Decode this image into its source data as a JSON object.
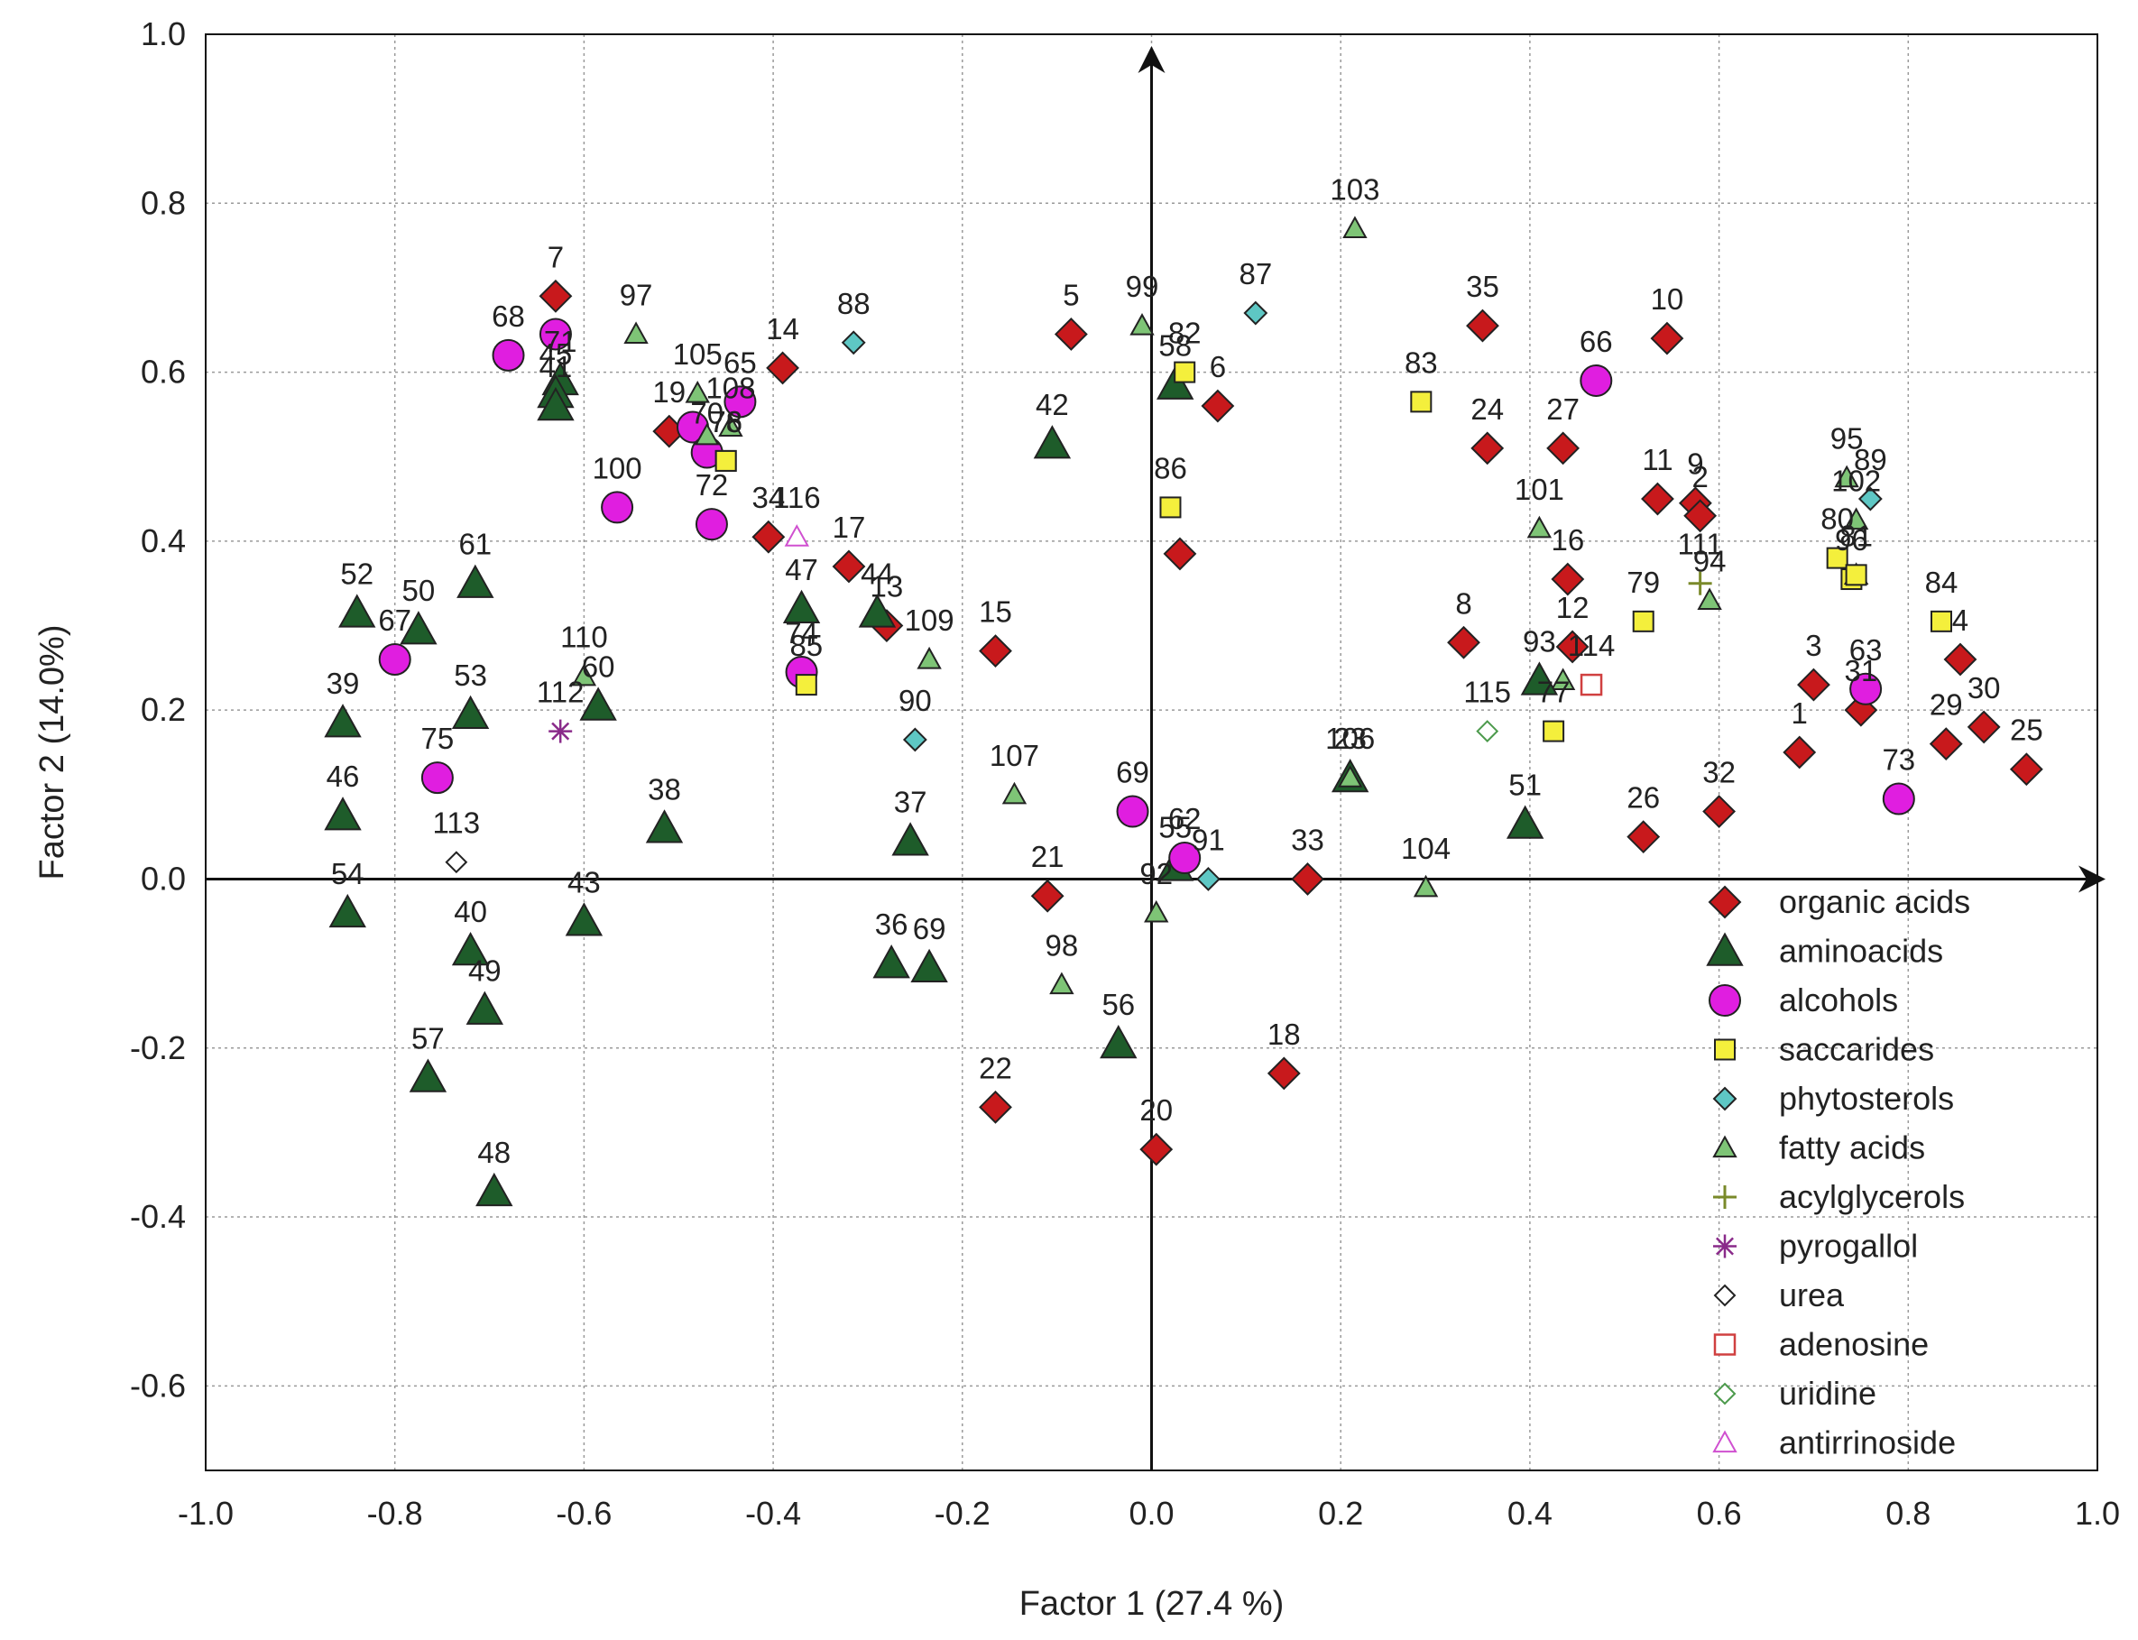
{
  "chart_data": {
    "type": "scatter",
    "xlabel": "Factor 1 (27.4 %)",
    "ylabel": "Factor 2 (14.0%)",
    "xlim": [
      -1.0,
      1.0
    ],
    "ylim": [
      -0.7,
      1.0
    ],
    "xticks": [
      "-1.0",
      "-0.8",
      "-0.6",
      "-0.4",
      "-0.2",
      "0.0",
      "0.2",
      "0.4",
      "0.6",
      "0.8",
      "1.0"
    ],
    "yticks": [
      "1.0",
      "0.8",
      "0.6",
      "0.4",
      "0.2",
      "0.0",
      "-0.2",
      "-0.4",
      "-0.6"
    ],
    "grid": true,
    "legend_position": "bottom-right",
    "categories": [
      {
        "name": "organic acids",
        "marker": "diamond",
        "color": "#c8191c"
      },
      {
        "name": "aminoacids",
        "marker": "triangle",
        "color": "#1e5c2a"
      },
      {
        "name": "alcohols",
        "marker": "circle",
        "color": "#e01ee0"
      },
      {
        "name": "saccarides",
        "marker": "square",
        "color": "#f4ef3c"
      },
      {
        "name": "phytosterols",
        "marker": "diamond-small",
        "color": "#5ec7c4"
      },
      {
        "name": "fatty acids",
        "marker": "triangle-small",
        "color": "#7ec476"
      },
      {
        "name": "acylglycerols",
        "marker": "plus",
        "color": "#7a8a2a"
      },
      {
        "name": "pyrogallol",
        "marker": "asterisk",
        "color": "#8a2a8a"
      },
      {
        "name": "urea",
        "marker": "diamond-open",
        "color": "#222222"
      },
      {
        "name": "adenosine",
        "marker": "square-open",
        "color": "#d04040"
      },
      {
        "name": "uridine",
        "marker": "diamond-open",
        "color": "#4c9a4c"
      },
      {
        "name": "antirrinoside",
        "marker": "triangle-open",
        "color": "#d050d0"
      }
    ],
    "points": [
      {
        "label": "7",
        "x": -0.63,
        "y": 0.69,
        "cat": 0
      },
      {
        "label": "14",
        "x": -0.39,
        "y": 0.605,
        "cat": 0
      },
      {
        "label": "19",
        "x": -0.51,
        "y": 0.53,
        "cat": 0
      },
      {
        "label": "34",
        "x": -0.405,
        "y": 0.405,
        "cat": 0
      },
      {
        "label": "17",
        "x": -0.32,
        "y": 0.37,
        "cat": 0
      },
      {
        "label": "13",
        "x": -0.28,
        "y": 0.3,
        "cat": 0
      },
      {
        "label": "15",
        "x": -0.165,
        "y": 0.27,
        "cat": 0
      },
      {
        "label": "5",
        "x": -0.085,
        "y": 0.645,
        "cat": 0
      },
      {
        "label": "6",
        "x": 0.07,
        "y": 0.56,
        "cat": 0
      },
      {
        "label": "",
        "x": 0.03,
        "y": 0.385,
        "cat": 0
      },
      {
        "label": "21",
        "x": -0.11,
        "y": -0.02,
        "cat": 0
      },
      {
        "label": "22",
        "x": -0.165,
        "y": -0.27,
        "cat": 0
      },
      {
        "label": "20",
        "x": 0.005,
        "y": -0.32,
        "cat": 0
      },
      {
        "label": "18",
        "x": 0.14,
        "y": -0.23,
        "cat": 0
      },
      {
        "label": "33",
        "x": 0.165,
        "y": 0.0,
        "cat": 0
      },
      {
        "label": "35",
        "x": 0.35,
        "y": 0.655,
        "cat": 0
      },
      {
        "label": "24",
        "x": 0.355,
        "y": 0.51,
        "cat": 0
      },
      {
        "label": "27",
        "x": 0.435,
        "y": 0.51,
        "cat": 0
      },
      {
        "label": "16",
        "x": 0.44,
        "y": 0.355,
        "cat": 0
      },
      {
        "label": "12",
        "x": 0.445,
        "y": 0.275,
        "cat": 0
      },
      {
        "label": "8",
        "x": 0.33,
        "y": 0.28,
        "cat": 0
      },
      {
        "label": "10",
        "x": 0.545,
        "y": 0.64,
        "cat": 0
      },
      {
        "label": "11",
        "x": 0.535,
        "y": 0.45,
        "cat": 0
      },
      {
        "label": "9",
        "x": 0.575,
        "y": 0.445,
        "cat": 0
      },
      {
        "label": "2",
        "x": 0.58,
        "y": 0.43,
        "cat": 0
      },
      {
        "label": "26",
        "x": 0.52,
        "y": 0.05,
        "cat": 0
      },
      {
        "label": "32",
        "x": 0.6,
        "y": 0.08,
        "cat": 0
      },
      {
        "label": "1",
        "x": 0.685,
        "y": 0.15,
        "cat": 0
      },
      {
        "label": "3",
        "x": 0.7,
        "y": 0.23,
        "cat": 0
      },
      {
        "label": "31",
        "x": 0.75,
        "y": 0.2,
        "cat": 0
      },
      {
        "label": "29",
        "x": 0.84,
        "y": 0.16,
        "cat": 0
      },
      {
        "label": "4",
        "x": 0.855,
        "y": 0.26,
        "cat": 0
      },
      {
        "label": "30",
        "x": 0.88,
        "y": 0.18,
        "cat": 0
      },
      {
        "label": "25",
        "x": 0.925,
        "y": 0.13,
        "cat": 0
      },
      {
        "label": "71",
        "x": -0.625,
        "y": 0.59,
        "cat": 1
      },
      {
        "label": "45",
        "x": -0.63,
        "y": 0.575,
        "cat": 1
      },
      {
        "label": "41",
        "x": -0.63,
        "y": 0.56,
        "cat": 1
      },
      {
        "label": "61",
        "x": -0.715,
        "y": 0.35,
        "cat": 1
      },
      {
        "label": "52",
        "x": -0.84,
        "y": 0.315,
        "cat": 1
      },
      {
        "label": "50",
        "x": -0.775,
        "y": 0.295,
        "cat": 1
      },
      {
        "label": "53",
        "x": -0.72,
        "y": 0.195,
        "cat": 1
      },
      {
        "label": "39",
        "x": -0.855,
        "y": 0.185,
        "cat": 1
      },
      {
        "label": "46",
        "x": -0.855,
        "y": 0.075,
        "cat": 1
      },
      {
        "label": "54",
        "x": -0.85,
        "y": -0.04,
        "cat": 1
      },
      {
        "label": "60",
        "x": -0.585,
        "y": 0.205,
        "cat": 1
      },
      {
        "label": "38",
        "x": -0.515,
        "y": 0.06,
        "cat": 1
      },
      {
        "label": "43",
        "x": -0.6,
        "y": -0.05,
        "cat": 1
      },
      {
        "label": "40",
        "x": -0.72,
        "y": -0.085,
        "cat": 1
      },
      {
        "label": "49",
        "x": -0.705,
        "y": -0.155,
        "cat": 1
      },
      {
        "label": "57",
        "x": -0.765,
        "y": -0.235,
        "cat": 1
      },
      {
        "label": "48",
        "x": -0.695,
        "y": -0.37,
        "cat": 1
      },
      {
        "label": "47",
        "x": -0.37,
        "y": 0.32,
        "cat": 1
      },
      {
        "label": "44",
        "x": -0.29,
        "y": 0.315,
        "cat": 1
      },
      {
        "label": "37",
        "x": -0.255,
        "y": 0.045,
        "cat": 1
      },
      {
        "label": "36",
        "x": -0.275,
        "y": -0.1,
        "cat": 1
      },
      {
        "label": "69",
        "x": -0.235,
        "y": -0.105,
        "cat": 1
      },
      {
        "label": "42",
        "x": -0.105,
        "y": 0.515,
        "cat": 1
      },
      {
        "label": "58",
        "x": 0.025,
        "y": 0.585,
        "cat": 1
      },
      {
        "label": "56",
        "x": -0.035,
        "y": -0.195,
        "cat": 1
      },
      {
        "label": "55",
        "x": 0.025,
        "y": 0.015,
        "cat": 1
      },
      {
        "label": "23",
        "x": 0.21,
        "y": 0.12,
        "cat": 1
      },
      {
        "label": "51",
        "x": 0.395,
        "y": 0.065,
        "cat": 1
      },
      {
        "label": "68",
        "x": -0.68,
        "y": 0.62,
        "cat": 2
      },
      {
        "label": "",
        "x": -0.63,
        "y": 0.645,
        "cat": 2
      },
      {
        "label": "65",
        "x": -0.435,
        "y": 0.565,
        "cat": 2
      },
      {
        "label": "",
        "x": -0.485,
        "y": 0.535,
        "cat": 2
      },
      {
        "label": "70",
        "x": -0.47,
        "y": 0.505,
        "cat": 2
      },
      {
        "label": "100",
        "x": -0.565,
        "y": 0.44,
        "cat": 2
      },
      {
        "label": "72",
        "x": -0.465,
        "y": 0.42,
        "cat": 2
      },
      {
        "label": "67",
        "x": -0.8,
        "y": 0.26,
        "cat": 2
      },
      {
        "label": "75",
        "x": -0.755,
        "y": 0.12,
        "cat": 2
      },
      {
        "label": "74",
        "x": -0.37,
        "y": 0.245,
        "cat": 2
      },
      {
        "label": "66",
        "x": 0.47,
        "y": 0.59,
        "cat": 2
      },
      {
        "label": "63",
        "x": 0.755,
        "y": 0.225,
        "cat": 2
      },
      {
        "label": "73",
        "x": 0.79,
        "y": 0.095,
        "cat": 2
      },
      {
        "label": "69",
        "x": -0.02,
        "y": 0.08,
        "cat": 2
      },
      {
        "label": "62",
        "x": 0.035,
        "y": 0.025,
        "cat": 2
      },
      {
        "label": "76",
        "x": -0.45,
        "y": 0.495,
        "cat": 3
      },
      {
        "label": "85",
        "x": -0.365,
        "y": 0.23,
        "cat": 3
      },
      {
        "label": "82",
        "x": 0.035,
        "y": 0.6,
        "cat": 3
      },
      {
        "label": "86",
        "x": 0.02,
        "y": 0.44,
        "cat": 3
      },
      {
        "label": "83",
        "x": 0.285,
        "y": 0.565,
        "cat": 3
      },
      {
        "label": "79",
        "x": 0.52,
        "y": 0.305,
        "cat": 3
      },
      {
        "label": "77",
        "x": 0.425,
        "y": 0.175,
        "cat": 3
      },
      {
        "label": "80",
        "x": 0.725,
        "y": 0.38,
        "cat": 3
      },
      {
        "label": "96",
        "x": 0.74,
        "y": 0.355,
        "cat": 3
      },
      {
        "label": "84",
        "x": 0.835,
        "y": 0.305,
        "cat": 3
      },
      {
        "label": "88",
        "x": -0.315,
        "y": 0.635,
        "cat": 4
      },
      {
        "label": "90",
        "x": -0.25,
        "y": 0.165,
        "cat": 4
      },
      {
        "label": "87",
        "x": 0.11,
        "y": 0.67,
        "cat": 4
      },
      {
        "label": "91",
        "x": 0.06,
        "y": 0.0,
        "cat": 4
      },
      {
        "label": "89",
        "x": 0.76,
        "y": 0.45,
        "cat": 4
      },
      {
        "label": "97",
        "x": -0.545,
        "y": 0.645,
        "cat": 5
      },
      {
        "label": "105",
        "x": -0.48,
        "y": 0.575,
        "cat": 5
      },
      {
        "label": "108",
        "x": -0.445,
        "y": 0.535,
        "cat": 5
      },
      {
        "label": "",
        "x": -0.47,
        "y": 0.525,
        "cat": 5
      },
      {
        "label": "110",
        "x": -0.6,
        "y": 0.24,
        "cat": 5
      },
      {
        "label": "109",
        "x": -0.235,
        "y": 0.26,
        "cat": 5
      },
      {
        "label": "107",
        "x": -0.145,
        "y": 0.1,
        "cat": 5
      },
      {
        "label": "98",
        "x": -0.095,
        "y": -0.125,
        "cat": 5
      },
      {
        "label": "92",
        "x": 0.005,
        "y": -0.04,
        "cat": 5
      },
      {
        "label": "99",
        "x": -0.01,
        "y": 0.655,
        "cat": 5
      },
      {
        "label": "103",
        "x": 0.215,
        "y": 0.77,
        "cat": 5
      },
      {
        "label": "106",
        "x": 0.21,
        "y": 0.12,
        "cat": 5
      },
      {
        "label": "104",
        "x": 0.29,
        "y": -0.01,
        "cat": 5
      },
      {
        "label": "101",
        "x": 0.41,
        "y": 0.415,
        "cat": 5
      },
      {
        "label": "",
        "x": 0.435,
        "y": 0.235,
        "cat": 5
      },
      {
        "label": "94",
        "x": 0.59,
        "y": 0.33,
        "cat": 5
      },
      {
        "label": "95",
        "x": 0.735,
        "y": 0.475,
        "cat": 5
      },
      {
        "label": "102",
        "x": 0.745,
        "y": 0.425,
        "cat": 5
      },
      {
        "label": "",
        "x": 0.745,
        "y": 0.36,
        "cat": 5
      },
      {
        "label": "111",
        "x": 0.58,
        "y": 0.35,
        "cat": 6
      },
      {
        "label": "112",
        "x": -0.625,
        "y": 0.175,
        "cat": 7
      },
      {
        "label": "113",
        "x": -0.735,
        "y": 0.02,
        "cat": 8
      },
      {
        "label": "114",
        "x": 0.465,
        "y": 0.23,
        "cat": 9
      },
      {
        "label": "115",
        "x": 0.355,
        "y": 0.175,
        "cat": 10
      },
      {
        "label": "116",
        "x": -0.375,
        "y": 0.405,
        "cat": 11
      },
      {
        "label": "78",
        "x": -0.45,
        "y": 0.495,
        "cat": 3
      },
      {
        "label": "81",
        "x": 0.745,
        "y": 0.36,
        "cat": 3
      },
      {
        "label": "93",
        "x": 0.41,
        "y": 0.235,
        "cat": 1
      }
    ]
  }
}
